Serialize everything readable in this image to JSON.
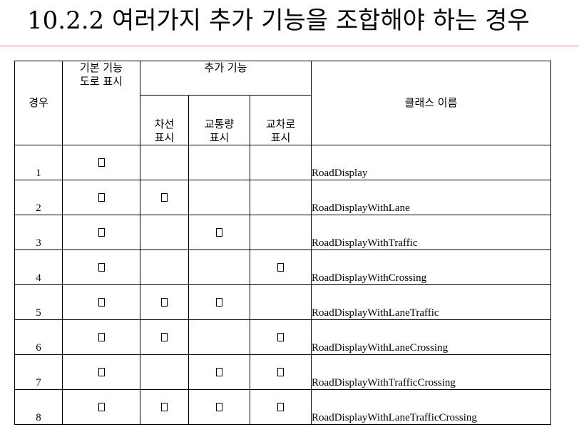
{
  "title": "10.2.2 여러가지 추가 기능을 조합해야 하는 경우",
  "table": {
    "headers": {
      "case": "경우",
      "basic": "기본 기능\n도로 표시",
      "addon_group": "추가 기능",
      "lane": "차선\n표시",
      "traffic": "교통량\n표시",
      "crossing": "교차로\n표시",
      "class_name": "클래스 이름"
    },
    "rows": [
      {
        "num": "1",
        "basic": true,
        "lane": false,
        "traffic": false,
        "crossing": false,
        "class": "RoadDisplay"
      },
      {
        "num": "2",
        "basic": true,
        "lane": true,
        "traffic": false,
        "crossing": false,
        "class": "RoadDisplayWithLane"
      },
      {
        "num": "3",
        "basic": true,
        "lane": false,
        "traffic": true,
        "crossing": false,
        "class": "RoadDisplayWithTraffic"
      },
      {
        "num": "4",
        "basic": true,
        "lane": false,
        "traffic": false,
        "crossing": true,
        "class": "RoadDisplayWithCrossing"
      },
      {
        "num": "5",
        "basic": true,
        "lane": true,
        "traffic": true,
        "crossing": false,
        "class": "RoadDisplayWithLaneTraffic"
      },
      {
        "num": "6",
        "basic": true,
        "lane": true,
        "traffic": false,
        "crossing": true,
        "class": "RoadDisplayWithLaneCrossing"
      },
      {
        "num": "7",
        "basic": true,
        "lane": false,
        "traffic": true,
        "crossing": true,
        "class": "RoadDisplayWithTrafficCrossing"
      },
      {
        "num": "8",
        "basic": true,
        "lane": true,
        "traffic": true,
        "crossing": true,
        "class": "RoadDisplayWithLaneTrafficCrossing"
      }
    ]
  }
}
